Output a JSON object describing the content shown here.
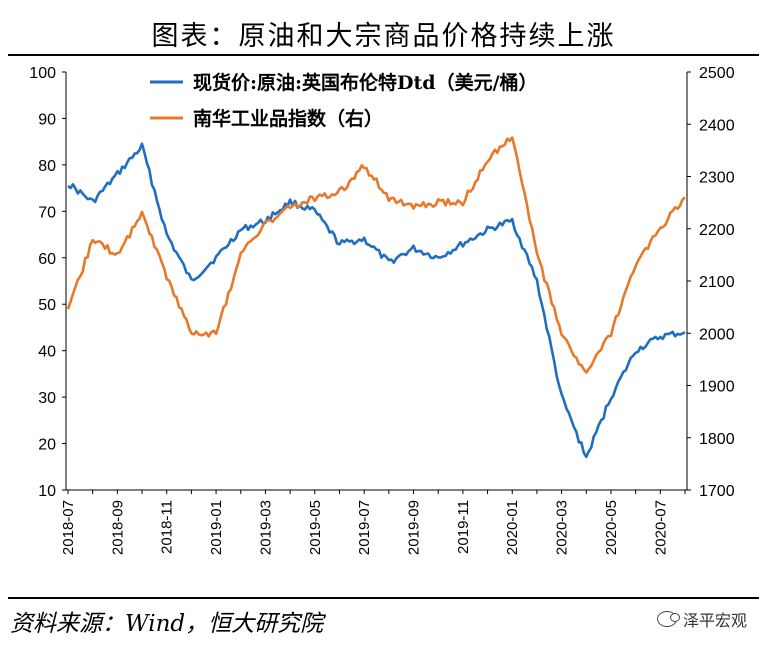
{
  "title": "图表：原油和大宗商品价格持续上涨",
  "source": "资料来源：Wind，恒大研究院",
  "watermark": "泽平宏观",
  "chart_data": {
    "type": "line",
    "x": [
      "2018-07",
      "2018-08",
      "2018-09",
      "2018-10",
      "2018-11",
      "2018-12",
      "2019-01",
      "2019-02",
      "2019-03",
      "2019-04",
      "2019-05",
      "2019-06",
      "2019-07",
      "2019-08",
      "2019-09",
      "2019-10",
      "2019-11",
      "2019-12",
      "2020-01",
      "2020-02",
      "2020-03",
      "2020-04",
      "2020-05",
      "2020-06",
      "2020-07",
      "2020-08"
    ],
    "x_tick_labels": [
      "2018-07",
      "2018-09",
      "2018-11",
      "2019-01",
      "2019-03",
      "2019-05",
      "2019-07",
      "2019-09",
      "2019-11",
      "2020-01",
      "2020-03",
      "2020-05",
      "2020-07"
    ],
    "y_left": {
      "lim": [
        10,
        100
      ],
      "ticks": [
        10,
        20,
        30,
        40,
        50,
        60,
        70,
        80,
        90,
        100
      ]
    },
    "y_right": {
      "lim": [
        1700,
        2500
      ],
      "ticks": [
        1700,
        1800,
        1900,
        2000,
        2100,
        2200,
        2300,
        2400,
        2500
      ]
    },
    "grid": false,
    "legend_position": "top",
    "series": [
      {
        "name": "现货价:原油:英国布伦特Dtd（美元/桶）",
        "axis": "left",
        "color": "#1f6fc0",
        "values": [
          76,
          72,
          78,
          84,
          65,
          55,
          60,
          66,
          68,
          72,
          70,
          63,
          64,
          59,
          62,
          60,
          63,
          66,
          68,
          55,
          30,
          17,
          30,
          40,
          43,
          44
        ]
      },
      {
        "name": "南华工业品指数（右）",
        "axis": "right",
        "color": "#e8782a",
        "values": [
          2040,
          2180,
          2150,
          2230,
          2110,
          2000,
          2000,
          2150,
          2210,
          2240,
          2260,
          2270,
          2320,
          2260,
          2240,
          2250,
          2250,
          2330,
          2380,
          2150,
          2000,
          1920,
          2000,
          2130,
          2200,
          2260
        ]
      }
    ]
  }
}
